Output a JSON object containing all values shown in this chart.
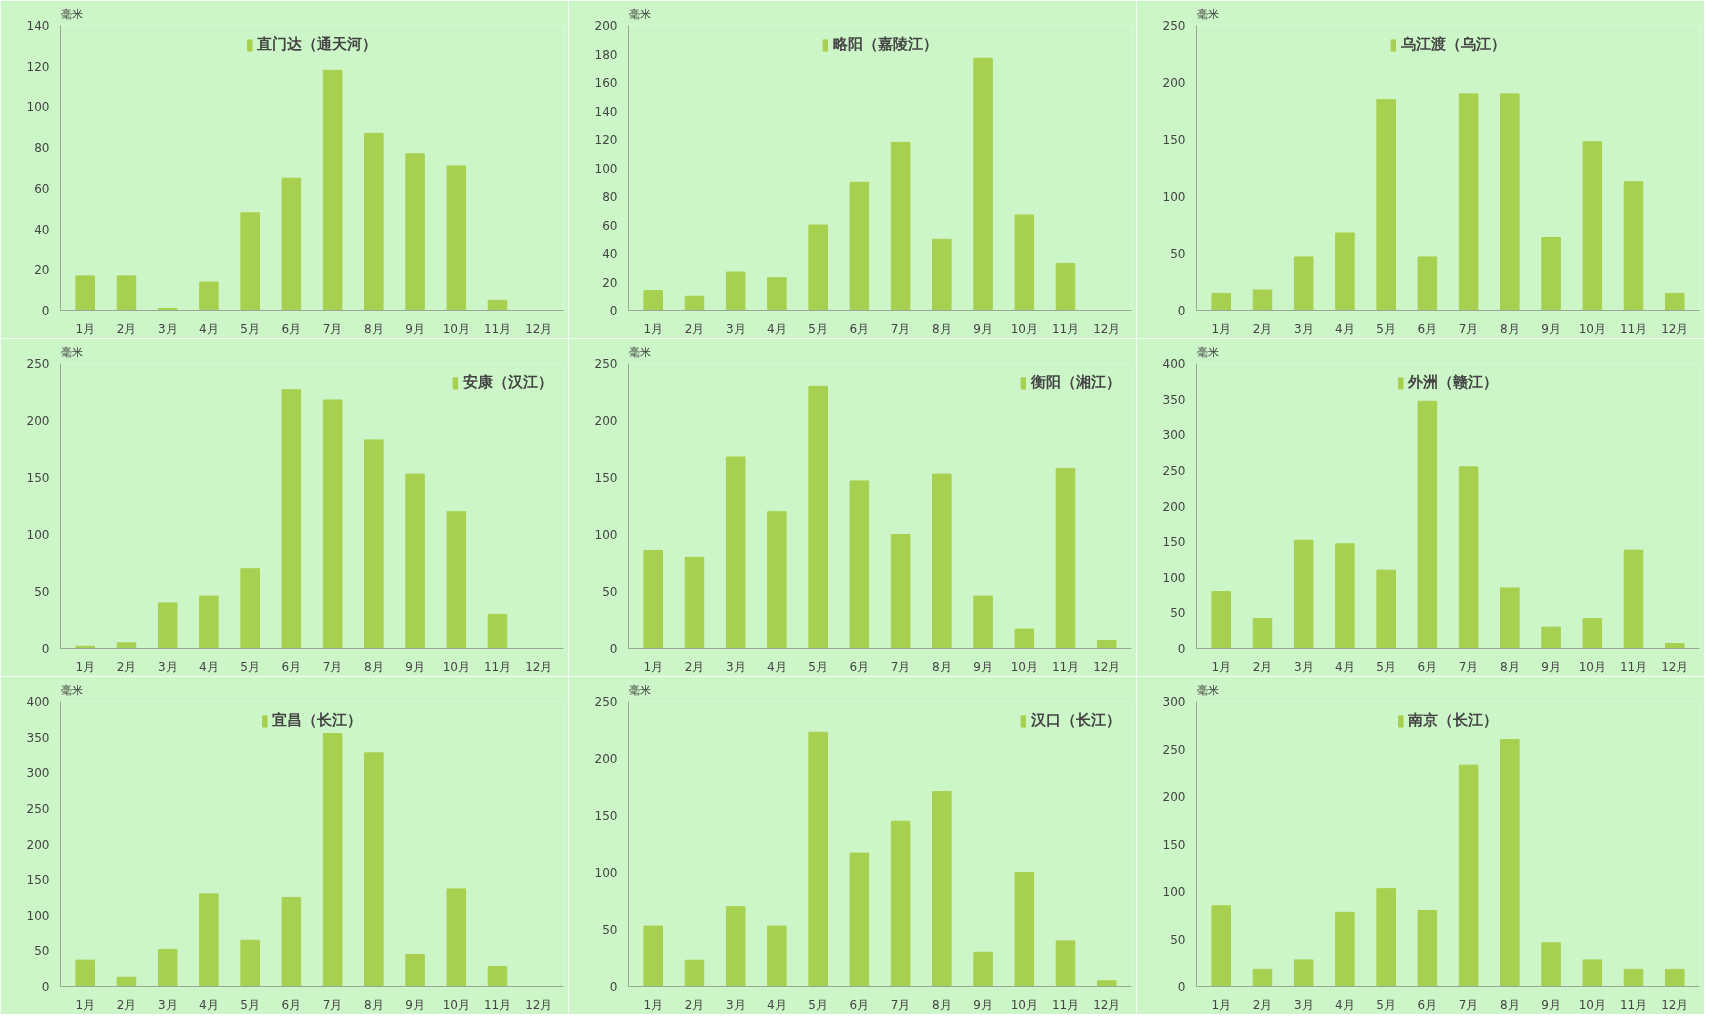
{
  "chart_data": [
    {
      "type": "bar",
      "ylabel": "毫米",
      "categories": [
        "1月",
        "2月",
        "3月",
        "4月",
        "5月",
        "6月",
        "7月",
        "8月",
        "9月",
        "10月",
        "11月",
        "12月"
      ],
      "ylim": [
        0,
        140
      ],
      "yticks": [
        0,
        20,
        40,
        60,
        80,
        100,
        120,
        140
      ],
      "legend": "top",
      "grid": false,
      "series": [
        {
          "name": "直门达（通天河）",
          "color": "#a8d050",
          "values": [
            17,
            17,
            1,
            14,
            48,
            65,
            118,
            87,
            77,
            71,
            5,
            0
          ]
        }
      ]
    },
    {
      "type": "bar",
      "ylabel": "毫米",
      "categories": [
        "1月",
        "2月",
        "3月",
        "4月",
        "5月",
        "6月",
        "7月",
        "8月",
        "9月",
        "10月",
        "11月",
        "12月"
      ],
      "ylim": [
        0,
        200
      ],
      "yticks": [
        0,
        20,
        40,
        60,
        80,
        100,
        120,
        140,
        160,
        180,
        200
      ],
      "legend": "top",
      "grid": false,
      "series": [
        {
          "name": "略阳（嘉陵江）",
          "color": "#a8d050",
          "values": [
            14,
            10,
            27,
            23,
            60,
            90,
            118,
            50,
            177,
            67,
            33,
            0
          ]
        }
      ]
    },
    {
      "type": "bar",
      "ylabel": "毫米",
      "categories": [
        "1月",
        "2月",
        "3月",
        "4月",
        "5月",
        "6月",
        "7月",
        "8月",
        "9月",
        "10月",
        "11月",
        "12月"
      ],
      "ylim": [
        0,
        250
      ],
      "yticks": [
        0,
        50,
        100,
        150,
        200,
        250
      ],
      "legend": "top",
      "grid": false,
      "series": [
        {
          "name": "乌江渡（乌江）",
          "color": "#a8d050",
          "values": [
            15,
            18,
            47,
            68,
            185,
            47,
            190,
            190,
            64,
            148,
            113,
            15
          ]
        }
      ]
    },
    {
      "type": "bar",
      "ylabel": "毫米",
      "categories": [
        "1月",
        "2月",
        "3月",
        "4月",
        "5月",
        "6月",
        "7月",
        "8月",
        "9月",
        "10月",
        "11月",
        "12月"
      ],
      "ylim": [
        0,
        250
      ],
      "yticks": [
        0,
        50,
        100,
        150,
        200,
        250
      ],
      "legend": "top right",
      "grid": false,
      "series": [
        {
          "name": "安康（汉江）",
          "color": "#a8d050",
          "values": [
            2,
            5,
            40,
            46,
            70,
            227,
            218,
            183,
            153,
            120,
            30,
            0
          ]
        }
      ]
    },
    {
      "type": "bar",
      "ylabel": "毫米",
      "categories": [
        "1月",
        "2月",
        "3月",
        "4月",
        "5月",
        "6月",
        "7月",
        "8月",
        "9月",
        "10月",
        "11月",
        "12月"
      ],
      "ylim": [
        0,
        250
      ],
      "yticks": [
        0,
        50,
        100,
        150,
        200,
        250
      ],
      "legend": "top right",
      "grid": false,
      "series": [
        {
          "name": "衡阳（湘江）",
          "color": "#a8d050",
          "values": [
            86,
            80,
            168,
            120,
            230,
            147,
            100,
            153,
            46,
            17,
            158,
            7
          ]
        }
      ]
    },
    {
      "type": "bar",
      "ylabel": "毫米",
      "categories": [
        "1月",
        "2月",
        "3月",
        "4月",
        "5月",
        "6月",
        "7月",
        "8月",
        "9月",
        "10月",
        "11月",
        "12月"
      ],
      "ylim": [
        0,
        400
      ],
      "yticks": [
        0,
        50,
        100,
        150,
        200,
        250,
        300,
        350,
        400
      ],
      "legend": "top",
      "grid": false,
      "series": [
        {
          "name": "外洲（赣江）",
          "color": "#a8d050",
          "values": [
            80,
            42,
            152,
            147,
            110,
            347,
            255,
            85,
            30,
            42,
            138,
            7
          ]
        }
      ]
    },
    {
      "type": "bar",
      "ylabel": "毫米",
      "categories": [
        "1月",
        "2月",
        "3月",
        "4月",
        "5月",
        "6月",
        "7月",
        "8月",
        "9月",
        "10月",
        "11月",
        "12月"
      ],
      "ylim": [
        0,
        400
      ],
      "yticks": [
        0,
        50,
        100,
        150,
        200,
        250,
        300,
        350,
        400
      ],
      "legend": "top",
      "grid": false,
      "series": [
        {
          "name": "宜昌（长江）",
          "color": "#a8d050",
          "values": [
            37,
            13,
            52,
            130,
            65,
            125,
            355,
            328,
            45,
            137,
            28,
            0
          ]
        }
      ]
    },
    {
      "type": "bar",
      "ylabel": "毫米",
      "categories": [
        "1月",
        "2月",
        "3月",
        "4月",
        "5月",
        "6月",
        "7月",
        "8月",
        "9月",
        "10月",
        "11月",
        "12月"
      ],
      "ylim": [
        0,
        250
      ],
      "yticks": [
        0,
        50,
        100,
        150,
        200,
        250
      ],
      "legend": "top right",
      "grid": false,
      "series": [
        {
          "name": "汉口（长江）",
          "color": "#a8d050",
          "values": [
            53,
            23,
            70,
            53,
            223,
            117,
            145,
            171,
            30,
            100,
            40,
            5
          ]
        }
      ]
    },
    {
      "type": "bar",
      "ylabel": "毫米",
      "categories": [
        "1月",
        "2月",
        "3月",
        "4月",
        "5月",
        "6月",
        "7月",
        "8月",
        "9月",
        "10月",
        "11月",
        "12月"
      ],
      "ylim": [
        0,
        300
      ],
      "yticks": [
        0,
        50,
        100,
        150,
        200,
        250,
        300
      ],
      "legend": "top",
      "grid": false,
      "series": [
        {
          "name": "南京（长江）",
          "color": "#a8d050",
          "values": [
            85,
            18,
            28,
            78,
            103,
            80,
            233,
            260,
            46,
            28,
            18,
            18
          ]
        }
      ]
    }
  ]
}
